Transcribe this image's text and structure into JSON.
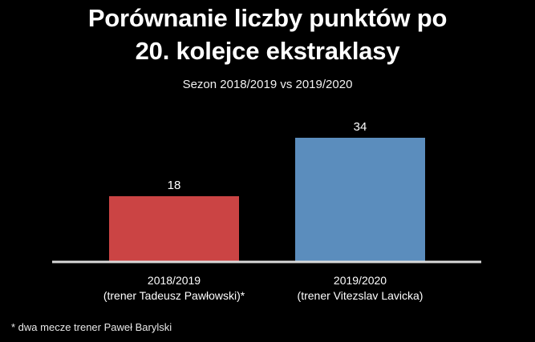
{
  "chart_data": {
    "type": "bar",
    "title_lines": [
      "Porównanie liczby punktów po",
      "20. kolejce ekstraklasy"
    ],
    "subtitle": "Sezon 2018/2019 vs 2019/2020",
    "categories": [
      {
        "line1": "2018/2019",
        "line2": "(trener Tadeusz Pawłowski)*"
      },
      {
        "line1": "2019/2020",
        "line2": "(trener Vitezslav Lavicka)"
      }
    ],
    "values": [
      18,
      34
    ],
    "data_labels": [
      "18",
      "34"
    ],
    "colors": [
      "#cb4444",
      "#5b8dbd"
    ],
    "axis_color": "#d9d9d9",
    "ylim": [
      0,
      34
    ],
    "grid": false,
    "footnote": "* dwa mecze trener Paweł Barylski"
  }
}
